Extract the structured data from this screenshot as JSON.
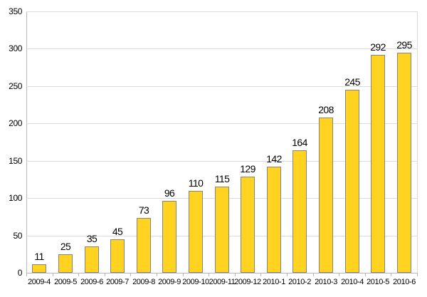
{
  "chart_data": {
    "type": "bar",
    "title": "",
    "xlabel": "",
    "ylabel": "",
    "categories": [
      "2009-4",
      "2009-5",
      "2009-6",
      "2009-7",
      "2009-8",
      "2009-9",
      "2009-10",
      "2009-11",
      "2009-12",
      "2010-1",
      "2010-2",
      "2010-3",
      "2010-4",
      "2010-5",
      "2010-6"
    ],
    "values": [
      11,
      25,
      35,
      45,
      73,
      96,
      110,
      115,
      129,
      142,
      164,
      208,
      245,
      292,
      295
    ],
    "ylim": [
      0,
      350
    ],
    "ytick_step": 50,
    "grid": true,
    "legend": "none",
    "data_labels": true,
    "colors": {
      "bar_fill": "#FFD320",
      "bar_border": "#858585",
      "gridline": "#dcdcdc",
      "axis": "#b7b7b7",
      "text": "#000000",
      "background": "#ffffff"
    }
  }
}
